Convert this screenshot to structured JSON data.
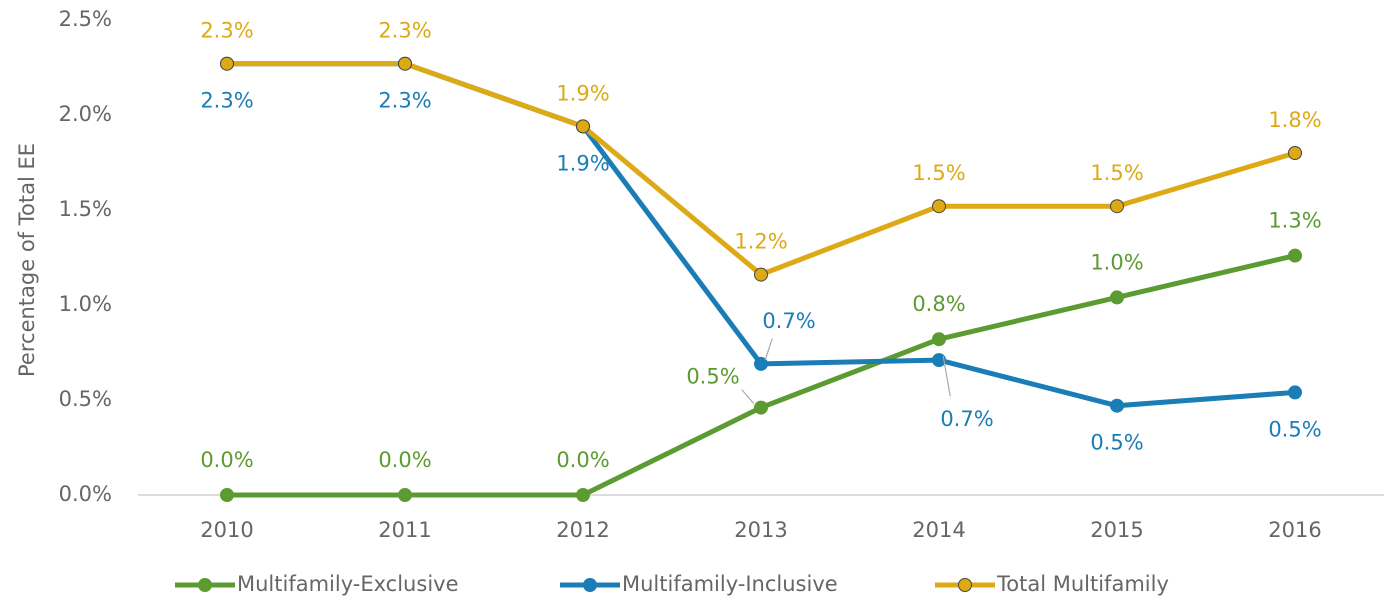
{
  "chart_data": {
    "type": "line",
    "y_axis_label": "Percentage of Total EE",
    "categories": [
      "2010",
      "2011",
      "2012",
      "2013",
      "2014",
      "2015",
      "2016"
    ],
    "series": [
      {
        "name": "Multifamily-Exclusive",
        "color": "#5b9b31",
        "values": [
          0,
          0,
          0,
          0.46,
          0.82,
          1.04,
          1.26
        ],
        "value_labels": [
          "0.0%",
          "0.0%",
          "0.0%",
          "0.5%",
          "0.8%",
          "1.0%",
          "1.3%"
        ]
      },
      {
        "name": "Multifamily-Inclusive",
        "color": "#1b7db6",
        "values": [
          2.27,
          2.27,
          1.94,
          0.69,
          0.71,
          0.47,
          0.54
        ],
        "value_labels": [
          "2.3%",
          "2.3%",
          "1.9%",
          "0.7%",
          "0.7%",
          "0.5%",
          "0.5%"
        ]
      },
      {
        "name": "Total Multifamily",
        "color": "#dda915",
        "values": [
          2.27,
          2.27,
          1.94,
          1.16,
          1.52,
          1.52,
          1.8
        ],
        "value_labels": [
          "2.3%",
          "2.3%",
          "1.9%",
          "1.2%",
          "1.5%",
          "1.5%",
          "1.8%"
        ]
      }
    ],
    "ylim": [
      0,
      2.5
    ],
    "yticks": [
      {
        "value": 0,
        "label": "0.0%"
      },
      {
        "value": 0.5,
        "label": "0.5%"
      },
      {
        "value": 1,
        "label": "1.0%"
      },
      {
        "value": 1.5,
        "label": "1.5%"
      },
      {
        "value": 2,
        "label": "2.0%"
      },
      {
        "value": 2.5,
        "label": "2.5%"
      }
    ],
    "grid": false,
    "legend": "bottom"
  }
}
